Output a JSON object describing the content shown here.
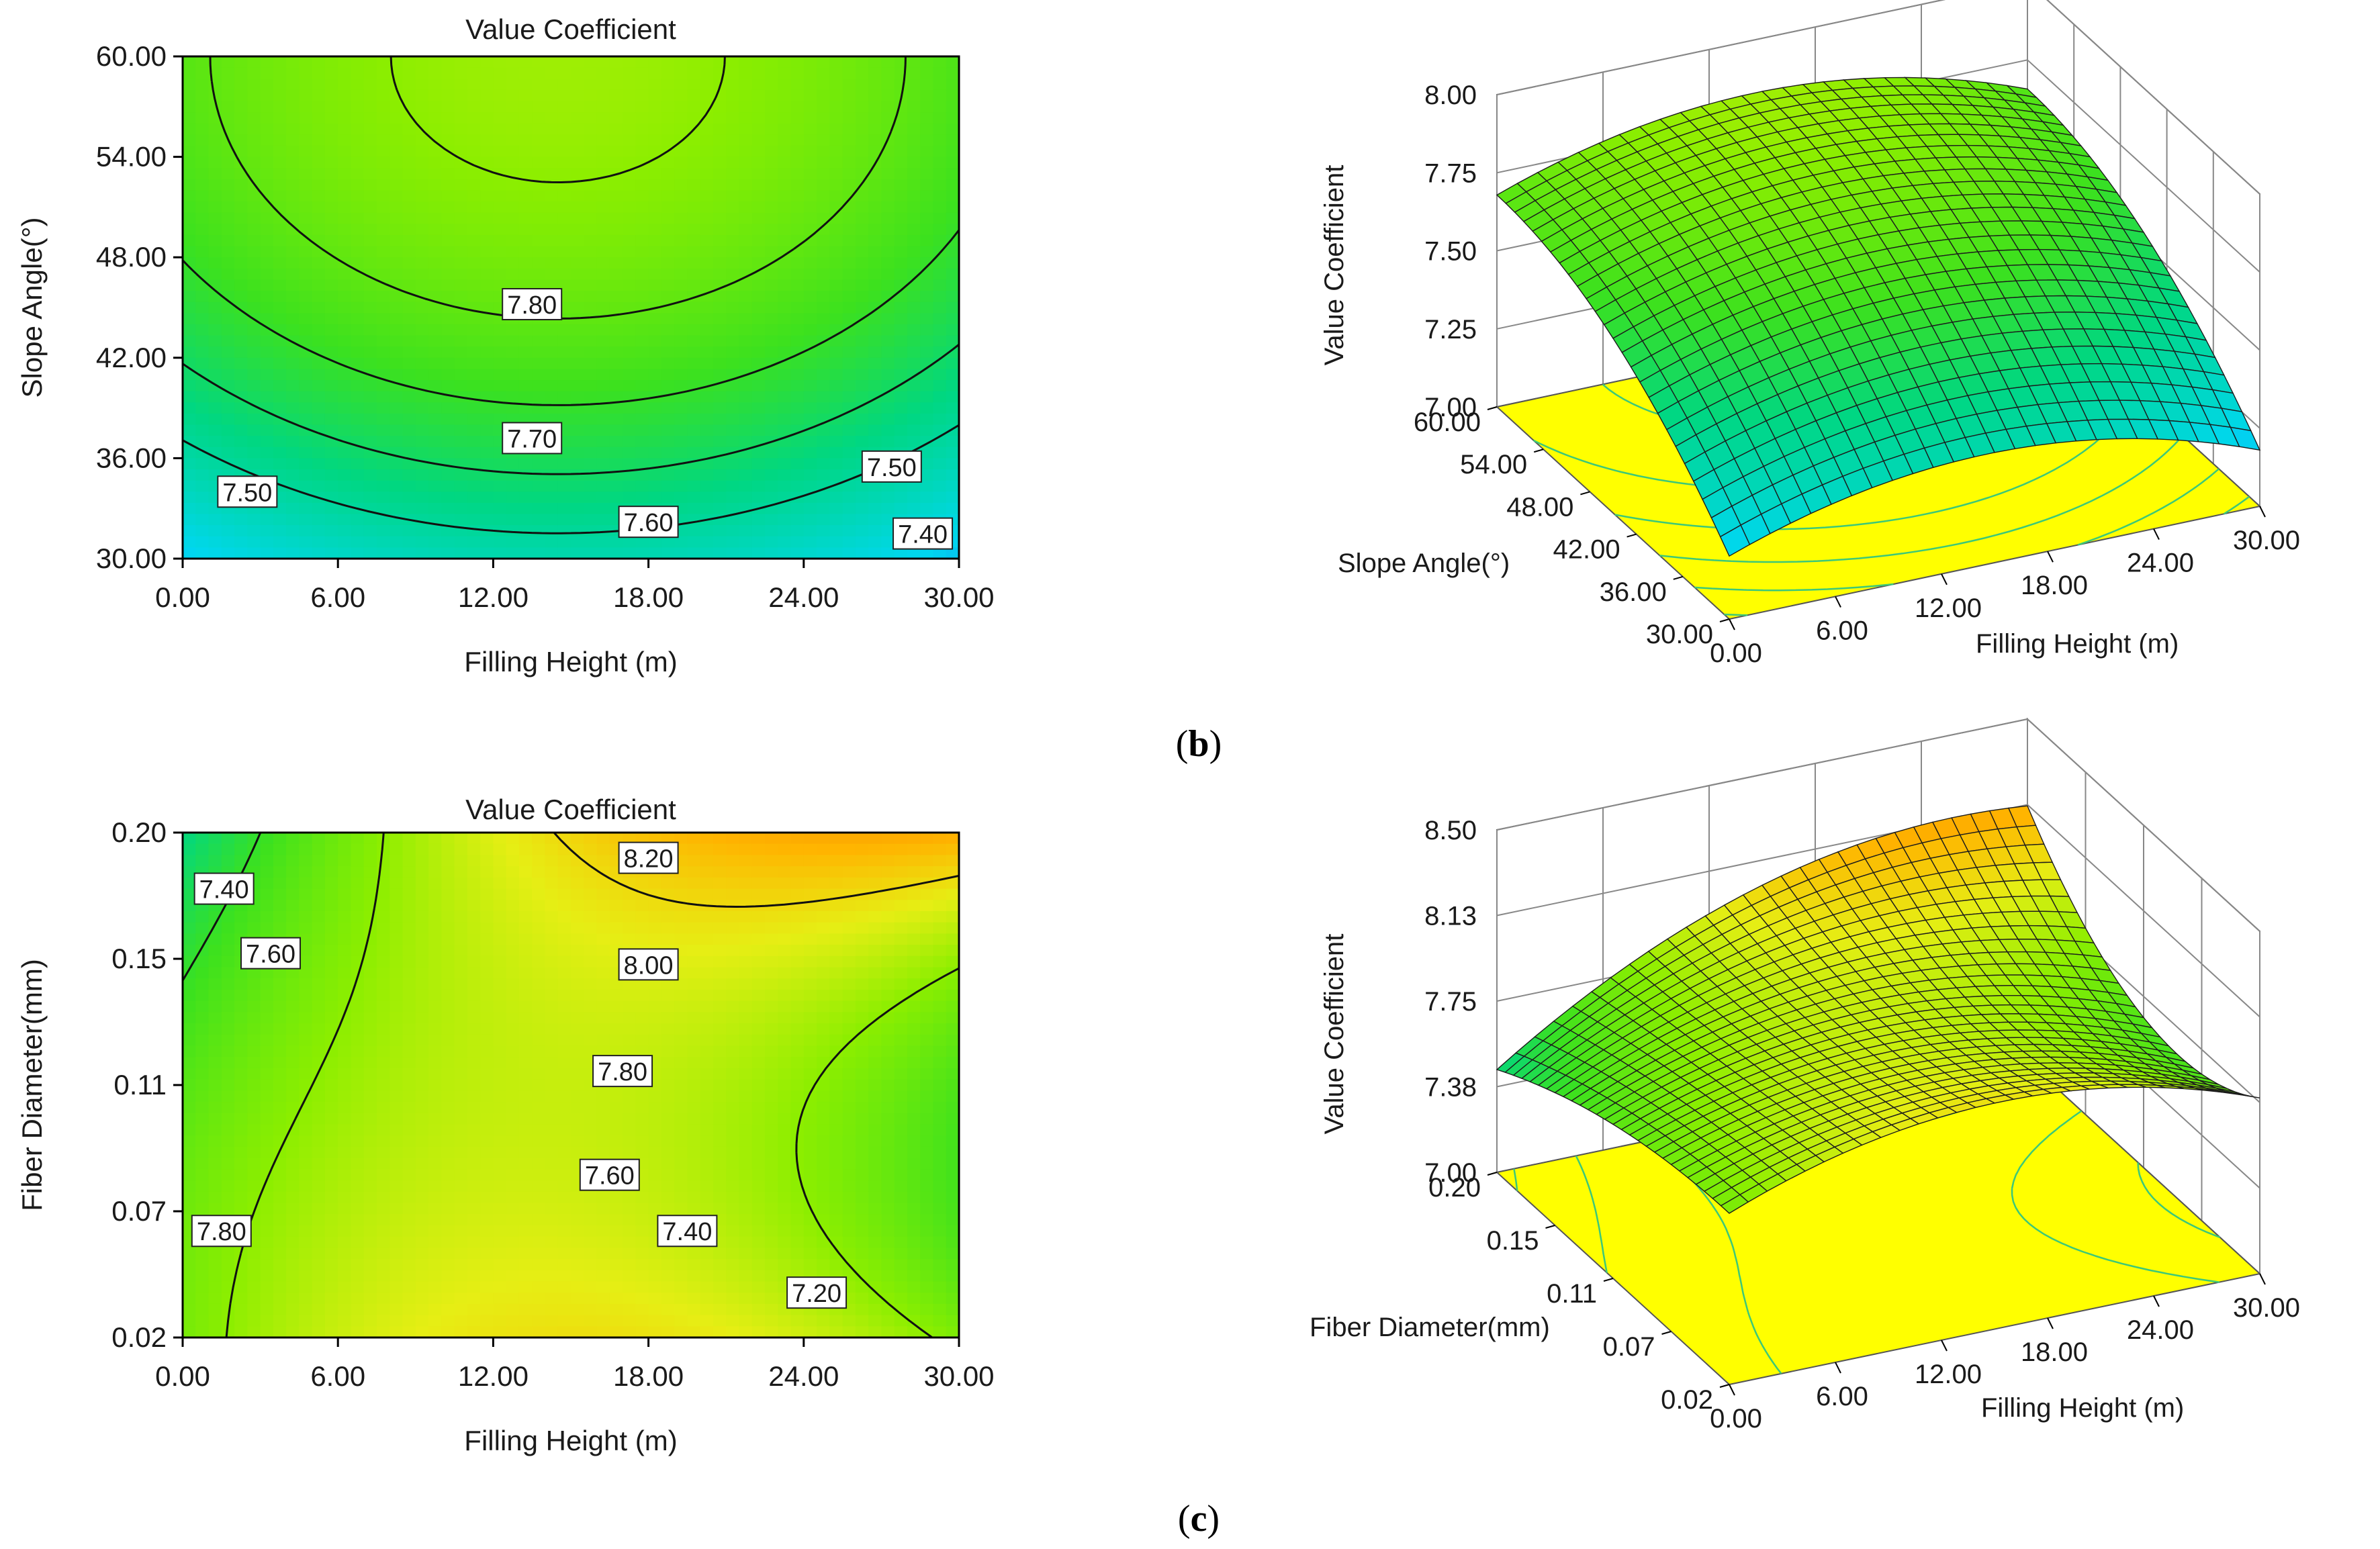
{
  "panels": [
    {
      "label": "(b)",
      "bold": "b"
    },
    {
      "label": "(c)",
      "bold": "c"
    }
  ],
  "chart_data": [
    {
      "type": "contour",
      "title": "Value Coefficient",
      "xlabel": "Filling Height (m)",
      "ylabel": "Slope Angle(°)",
      "xlim": [
        0,
        30
      ],
      "ylim": [
        30,
        60
      ],
      "xticks": [
        "0.00",
        "6.00",
        "12.00",
        "18.00",
        "24.00",
        "30.00"
      ],
      "yticks": [
        "30.00",
        "36.00",
        "42.00",
        "48.00",
        "54.00",
        "60.00"
      ],
      "model": {
        "c": 7.83,
        "x0": 14.5,
        "y0": 60,
        "ax": 0.00072,
        "ay": 0.00053
      },
      "levels": [
        7.4,
        7.5,
        7.6,
        7.7,
        7.8
      ],
      "contour_labels": [
        {
          "text": "7.80",
          "x": 13.5,
          "y": 45.2
        },
        {
          "text": "7.70",
          "x": 13.5,
          "y": 37.2
        },
        {
          "text": "7.60",
          "x": 18,
          "y": 32.2
        },
        {
          "text": "7.50",
          "x": 2.5,
          "y": 34.0
        },
        {
          "text": "7.50",
          "x": 27.4,
          "y": 35.5
        },
        {
          "text": "7.40",
          "x": 28.6,
          "y": 31.5
        }
      ]
    },
    {
      "type": "surface",
      "zlabel": "Value Coefficient",
      "xlabel": "Filling Height (m)",
      "ylabel": "Slope Angle(°)",
      "xlim": [
        0,
        30
      ],
      "ylim": [
        30,
        60
      ],
      "zlim": [
        7.0,
        8.0
      ],
      "xticks": [
        "0.00",
        "6.00",
        "12.00",
        "18.00",
        "24.00",
        "30.00"
      ],
      "yticks": [
        "30.00",
        "36.00",
        "42.00",
        "48.00",
        "54.00",
        "60.00"
      ],
      "zticks": [
        "7.00",
        "7.25",
        "7.50",
        "7.75",
        "8.00"
      ]
    },
    {
      "type": "contour",
      "title": "Value Coefficient",
      "xlabel": "Filling Height (m)",
      "ylabel": "Fiber Diameter(mm)",
      "xlim": [
        0,
        30
      ],
      "ylim": [
        0.02,
        0.2
      ],
      "xticks": [
        "0.00",
        "6.00",
        "12.00",
        "18.00",
        "24.00",
        "30.00"
      ],
      "yticks": [
        "0.02",
        "0.07",
        "0.11",
        "0.15",
        "0.20"
      ],
      "levels": [
        7.2,
        7.4,
        7.6,
        7.8,
        8.0,
        8.2
      ],
      "contour_labels": [
        {
          "text": "8.20",
          "x": 18.0,
          "y": 0.191
        },
        {
          "text": "8.00",
          "x": 18.0,
          "y": 0.153
        },
        {
          "text": "7.80",
          "x": 17.0,
          "y": 0.115
        },
        {
          "text": "7.60",
          "x": 16.5,
          "y": 0.078
        },
        {
          "text": "7.40",
          "x": 19.5,
          "y": 0.058
        },
        {
          "text": "7.20",
          "x": 24.5,
          "y": 0.036
        },
        {
          "text": "7.40",
          "x": 1.6,
          "y": 0.18
        },
        {
          "text": "7.60",
          "x": 3.4,
          "y": 0.157
        },
        {
          "text": "7.80",
          "x": 1.5,
          "y": 0.058
        }
      ]
    },
    {
      "type": "surface",
      "zlabel": "Value Coefficient",
      "xlabel": "Filling Height (m)",
      "ylabel": "Fiber Diameter(mm)",
      "xlim": [
        0,
        30
      ],
      "ylim": [
        0.02,
        0.2
      ],
      "zlim": [
        7.0,
        8.5
      ],
      "xticks": [
        "0.00",
        "6.00",
        "12.00",
        "18.00",
        "24.00",
        "30.00"
      ],
      "yticks": [
        "0.02",
        "0.07",
        "0.11",
        "0.15",
        "0.20"
      ],
      "zticks": [
        "7.00",
        "7.38",
        "7.75",
        "8.13",
        "8.50"
      ]
    }
  ]
}
